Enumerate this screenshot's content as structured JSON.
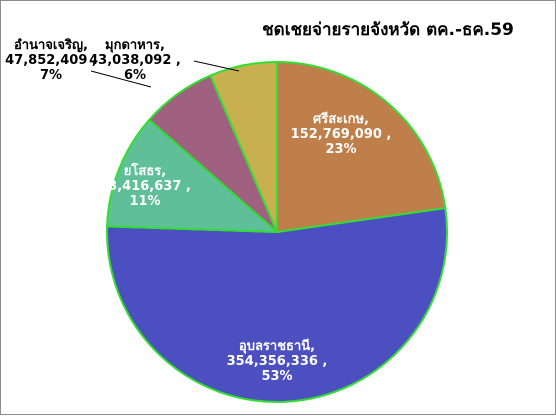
{
  "chart_data": {
    "type": "pie",
    "title": "ชดเชยจ่ายรายจังหวัด ตค.-ธค.59",
    "slices": [
      {
        "name": "ศรีสะเกษ",
        "value_text": "152,769,090",
        "percent_text": "23%",
        "value": 152769090,
        "color": "#BE7F4B",
        "label_color": "#ffffff"
      },
      {
        "name": "อุบลราชธานี",
        "value_text": "354,356,336",
        "percent_text": "53%",
        "value": 354356336,
        "color": "#4B4FBF",
        "label_color": "#ffffff"
      },
      {
        "name": "ยโสธร",
        "value_text": "73,416,637",
        "percent_text": "11%",
        "value": 73416637,
        "color": "#5EBF99",
        "label_color": "#ffffff"
      },
      {
        "name": "อำนาจเจริญ",
        "value_text": "47,852,409",
        "percent_text": "7%",
        "value": 47852409,
        "color": "#A0607F",
        "label_color": "#000000"
      },
      {
        "name": "มุกดาหาร",
        "value_text": "43,038,092",
        "percent_text": "6%",
        "value": 43038092,
        "color": "#C9B04F",
        "label_color": "#000000"
      }
    ],
    "border_color": "#33DD33",
    "legend": "none"
  }
}
